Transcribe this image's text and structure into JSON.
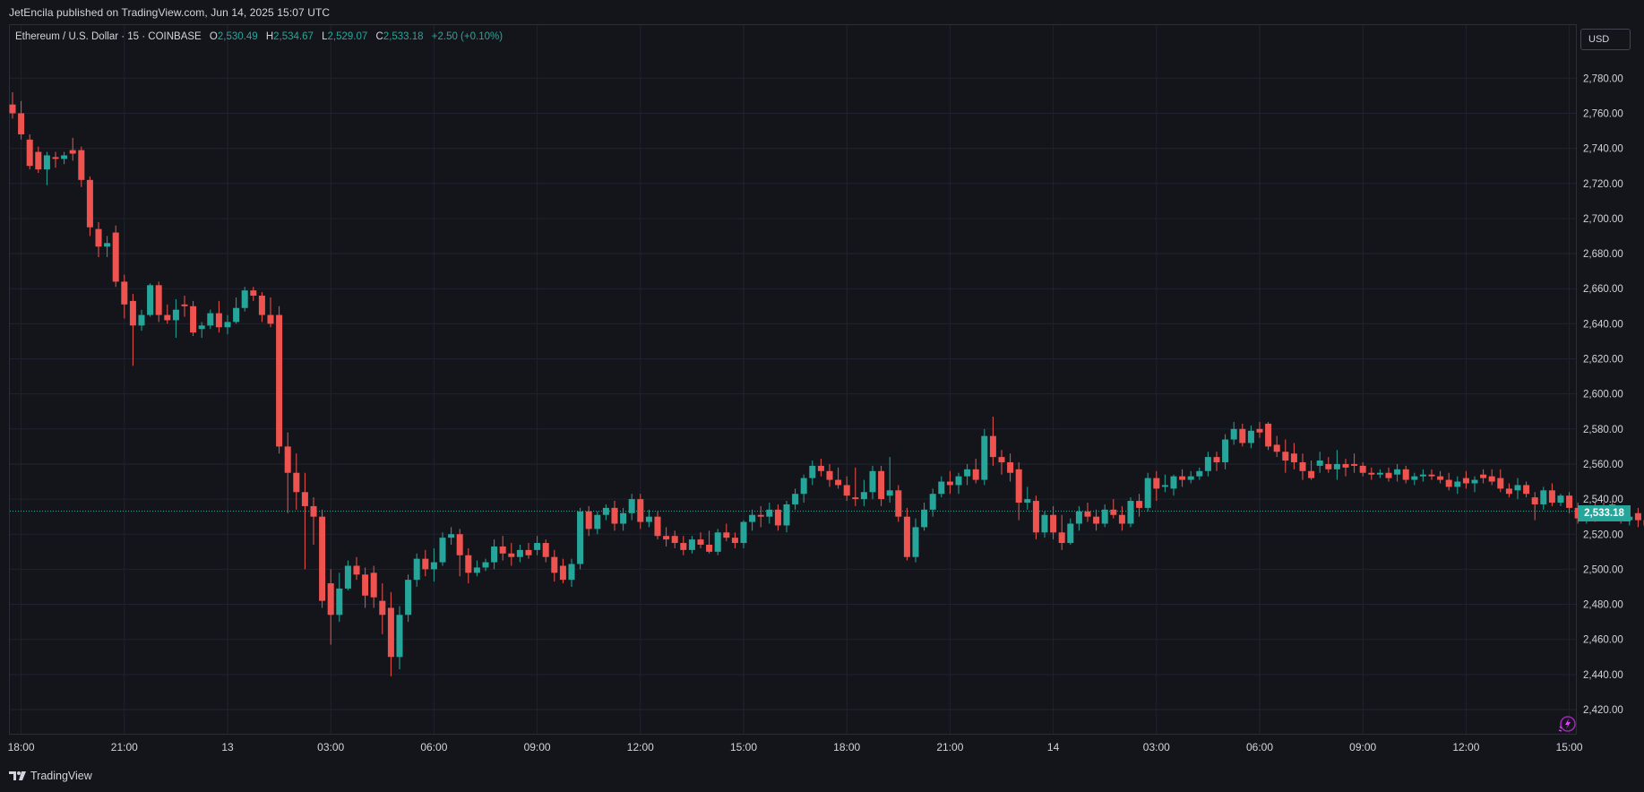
{
  "header": {
    "published": "JetEncila published on TradingView.com, Jun 14, 2025 15:07 UTC"
  },
  "legend": {
    "symbol": "Ethereum / U.S. Dollar · 15 · COINBASE",
    "o_label": "O",
    "o_value": "2,530.49",
    "h_label": "H",
    "h_value": "2,534.67",
    "l_label": "L",
    "l_value": "2,529.07",
    "c_label": "C",
    "c_value": "2,533.18",
    "change": "+2.50 (+0.10%)"
  },
  "currency_button": "USD",
  "current_price_label": "2,533.18",
  "footer": {
    "brand": "TradingView"
  },
  "colors": {
    "background": "#14151b",
    "up": "#26a69a",
    "down": "#ef5350",
    "grid": "#1f2230",
    "text": "#d1d4dc"
  },
  "chart_data": {
    "type": "candlestick",
    "symbol": "ETH/USD",
    "interval": "15",
    "exchange": "COINBASE",
    "ylim": [
      2405,
      2795
    ],
    "yticks": [
      2420,
      2440,
      2460,
      2480,
      2500,
      2520,
      2540,
      2560,
      2580,
      2600,
      2620,
      2640,
      2660,
      2680,
      2700,
      2720,
      2740,
      2760,
      2780
    ],
    "ytick_labels": [
      "2,420.00",
      "2,440.00",
      "2,460.00",
      "2,480.00",
      "2,500.00",
      "2,520.00",
      "2,540.00",
      "2,560.00",
      "2,580.00",
      "2,600.00",
      "2,620.00",
      "2,640.00",
      "2,660.00",
      "2,680.00",
      "2,700.00",
      "2,720.00",
      "2,740.00",
      "2,760.00",
      "2,780.00"
    ],
    "xtick_labels": [
      "18:00",
      "21:00",
      "13",
      "03:00",
      "06:00",
      "09:00",
      "12:00",
      "15:00",
      "18:00",
      "21:00",
      "14",
      "03:00",
      "06:00",
      "09:00",
      "12:00",
      "15:00"
    ],
    "last_price": 2533.18,
    "grid": true,
    "candles": [
      [
        2765,
        2772,
        2757,
        2760
      ],
      [
        2760,
        2767,
        2745,
        2748
      ],
      [
        2745,
        2748,
        2728,
        2730
      ],
      [
        2738,
        2741,
        2726,
        2728
      ],
      [
        2728,
        2738,
        2719,
        2736
      ],
      [
        2735,
        2738,
        2729,
        2734
      ],
      [
        2734,
        2738,
        2731,
        2736
      ],
      [
        2739,
        2746,
        2733,
        2737
      ],
      [
        2739,
        2741,
        2718,
        2722
      ],
      [
        2722,
        2724,
        2690,
        2695
      ],
      [
        2694,
        2698,
        2678,
        2684
      ],
      [
        2684,
        2690,
        2678,
        2686
      ],
      [
        2692,
        2696,
        2661,
        2664
      ],
      [
        2664,
        2668,
        2643,
        2651
      ],
      [
        2653,
        2657,
        2616,
        2639
      ],
      [
        2639,
        2648,
        2636,
        2645
      ],
      [
        2645,
        2663,
        2644,
        2662
      ],
      [
        2662,
        2664,
        2641,
        2645
      ],
      [
        2645,
        2651,
        2640,
        2642
      ],
      [
        2642,
        2654,
        2632,
        2648
      ],
      [
        2651,
        2656,
        2644,
        2650
      ],
      [
        2650,
        2653,
        2633,
        2635
      ],
      [
        2637,
        2641,
        2632,
        2639
      ],
      [
        2639,
        2648,
        2637,
        2646
      ],
      [
        2646,
        2653,
        2635,
        2638
      ],
      [
        2638,
        2645,
        2634,
        2641
      ],
      [
        2641,
        2655,
        2640,
        2649
      ],
      [
        2649,
        2661,
        2647,
        2659
      ],
      [
        2659,
        2661,
        2653,
        2656
      ],
      [
        2656,
        2658,
        2641,
        2645
      ],
      [
        2645,
        2655,
        2638,
        2640
      ],
      [
        2645,
        2650,
        2566,
        2570
      ],
      [
        2570,
        2578,
        2532,
        2555
      ],
      [
        2555,
        2566,
        2534,
        2544
      ],
      [
        2544,
        2555,
        2500,
        2536
      ],
      [
        2536,
        2541,
        2514,
        2530
      ],
      [
        2530,
        2534,
        2478,
        2482
      ],
      [
        2492,
        2500,
        2457,
        2474
      ],
      [
        2474,
        2498,
        2470,
        2489
      ],
      [
        2489,
        2505,
        2488,
        2502
      ],
      [
        2502,
        2507,
        2494,
        2497
      ],
      [
        2497,
        2501,
        2478,
        2485
      ],
      [
        2498,
        2502,
        2478,
        2484
      ],
      [
        2482,
        2492,
        2463,
        2474
      ],
      [
        2478,
        2487,
        2439,
        2450
      ],
      [
        2450,
        2479,
        2443,
        2474
      ],
      [
        2474,
        2497,
        2470,
        2494
      ],
      [
        2494,
        2509,
        2490,
        2506
      ],
      [
        2506,
        2511,
        2496,
        2500
      ],
      [
        2500,
        2512,
        2493,
        2504
      ],
      [
        2504,
        2521,
        2502,
        2518
      ],
      [
        2518,
        2524,
        2514,
        2520
      ],
      [
        2520,
        2523,
        2496,
        2508
      ],
      [
        2508,
        2512,
        2492,
        2498
      ],
      [
        2498,
        2505,
        2496,
        2501
      ],
      [
        2501,
        2506,
        2499,
        2504
      ],
      [
        2504,
        2517,
        2500,
        2513
      ],
      [
        2513,
        2519,
        2505,
        2509
      ],
      [
        2509,
        2515,
        2502,
        2507
      ],
      [
        2507,
        2514,
        2504,
        2511
      ],
      [
        2511,
        2515,
        2506,
        2508
      ],
      [
        2511,
        2519,
        2508,
        2515
      ],
      [
        2515,
        2517,
        2504,
        2507
      ],
      [
        2507,
        2511,
        2493,
        2498
      ],
      [
        2502,
        2506,
        2492,
        2494
      ],
      [
        2494,
        2506,
        2490,
        2503
      ],
      [
        2503,
        2535,
        2500,
        2533
      ],
      [
        2533,
        2536,
        2519,
        2523
      ],
      [
        2523,
        2533,
        2520,
        2531
      ],
      [
        2531,
        2537,
        2528,
        2535
      ],
      [
        2535,
        2539,
        2522,
        2526
      ],
      [
        2526,
        2535,
        2522,
        2532
      ],
      [
        2532,
        2543,
        2528,
        2540
      ],
      [
        2540,
        2543,
        2523,
        2527
      ],
      [
        2527,
        2534,
        2524,
        2530
      ],
      [
        2530,
        2533,
        2517,
        2519
      ],
      [
        2519,
        2524,
        2513,
        2517
      ],
      [
        2519,
        2522,
        2512,
        2515
      ],
      [
        2515,
        2519,
        2508,
        2511
      ],
      [
        2511,
        2519,
        2509,
        2517
      ],
      [
        2517,
        2521,
        2512,
        2514
      ],
      [
        2514,
        2522,
        2509,
        2510
      ],
      [
        2510,
        2523,
        2508,
        2521
      ],
      [
        2521,
        2526,
        2516,
        2518
      ],
      [
        2518,
        2521,
        2512,
        2515
      ],
      [
        2515,
        2528,
        2512,
        2527
      ],
      [
        2527,
        2534,
        2522,
        2531
      ],
      [
        2531,
        2536,
        2524,
        2530
      ],
      [
        2530,
        2538,
        2526,
        2534
      ],
      [
        2534,
        2537,
        2522,
        2525
      ],
      [
        2525,
        2539,
        2521,
        2537
      ],
      [
        2537,
        2546,
        2534,
        2543
      ],
      [
        2543,
        2554,
        2538,
        2552
      ],
      [
        2552,
        2562,
        2548,
        2559
      ],
      [
        2559,
        2563,
        2553,
        2556
      ],
      [
        2556,
        2560,
        2547,
        2551
      ],
      [
        2551,
        2558,
        2546,
        2548
      ],
      [
        2548,
        2553,
        2539,
        2542
      ],
      [
        2541,
        2558,
        2536,
        2540
      ],
      [
        2540,
        2551,
        2536,
        2544
      ],
      [
        2544,
        2559,
        2540,
        2556
      ],
      [
        2556,
        2559,
        2536,
        2540
      ],
      [
        2542,
        2564,
        2538,
        2545
      ],
      [
        2545,
        2548,
        2527,
        2530
      ],
      [
        2530,
        2535,
        2505,
        2507
      ],
      [
        2507,
        2529,
        2504,
        2524
      ],
      [
        2524,
        2538,
        2522,
        2534
      ],
      [
        2534,
        2546,
        2530,
        2543
      ],
      [
        2543,
        2553,
        2541,
        2550
      ],
      [
        2550,
        2556,
        2543,
        2548
      ],
      [
        2548,
        2555,
        2543,
        2553
      ],
      [
        2553,
        2560,
        2548,
        2557
      ],
      [
        2557,
        2563,
        2549,
        2551
      ],
      [
        2551,
        2580,
        2548,
        2576
      ],
      [
        2576,
        2587,
        2559,
        2564
      ],
      [
        2564,
        2568,
        2554,
        2561
      ],
      [
        2561,
        2566,
        2550,
        2555
      ],
      [
        2557,
        2561,
        2528,
        2538
      ],
      [
        2538,
        2547,
        2534,
        2540
      ],
      [
        2539,
        2542,
        2517,
        2521
      ],
      [
        2521,
        2533,
        2518,
        2531
      ],
      [
        2531,
        2536,
        2517,
        2521
      ],
      [
        2521,
        2531,
        2511,
        2515
      ],
      [
        2515,
        2529,
        2514,
        2526
      ],
      [
        2526,
        2536,
        2522,
        2533
      ],
      [
        2533,
        2538,
        2527,
        2530
      ],
      [
        2530,
        2534,
        2522,
        2526
      ],
      [
        2526,
        2537,
        2524,
        2534
      ],
      [
        2534,
        2540,
        2529,
        2531
      ],
      [
        2531,
        2536,
        2522,
        2526
      ],
      [
        2526,
        2541,
        2524,
        2539
      ],
      [
        2539,
        2543,
        2530,
        2535
      ],
      [
        2535,
        2555,
        2533,
        2552
      ],
      [
        2552,
        2556,
        2539,
        2546
      ],
      [
        2547,
        2554,
        2544,
        2548
      ],
      [
        2546,
        2554,
        2542,
        2553
      ],
      [
        2553,
        2557,
        2547,
        2551
      ],
      [
        2551,
        2556,
        2549,
        2553
      ],
      [
        2553,
        2558,
        2551,
        2556
      ],
      [
        2556,
        2567,
        2553,
        2564
      ],
      [
        2564,
        2567,
        2556,
        2561
      ],
      [
        2561,
        2577,
        2557,
        2574
      ],
      [
        2574,
        2584,
        2571,
        2580
      ],
      [
        2580,
        2583,
        2570,
        2572
      ],
      [
        2572,
        2582,
        2569,
        2579
      ],
      [
        2580,
        2584,
        2575,
        2578
      ],
      [
        2583,
        2584,
        2568,
        2570
      ],
      [
        2571,
        2576,
        2564,
        2567
      ],
      [
        2567,
        2574,
        2555,
        2562
      ],
      [
        2566,
        2572,
        2557,
        2561
      ],
      [
        2561,
        2566,
        2551,
        2556
      ],
      [
        2556,
        2562,
        2551,
        2552
      ],
      [
        2559,
        2567,
        2555,
        2562
      ],
      [
        2560,
        2564,
        2555,
        2557
      ],
      [
        2557,
        2568,
        2551,
        2560
      ],
      [
        2560,
        2563,
        2553,
        2558
      ],
      [
        2560,
        2566,
        2555,
        2559
      ],
      [
        2559,
        2561,
        2553,
        2555
      ],
      [
        2555,
        2558,
        2551,
        2554
      ],
      [
        2554,
        2557,
        2552,
        2555
      ],
      [
        2555,
        2558,
        2550,
        2552
      ],
      [
        2554,
        2560,
        2550,
        2557
      ],
      [
        2557,
        2559,
        2549,
        2551
      ],
      [
        2551,
        2555,
        2548,
        2553
      ],
      [
        2553,
        2557,
        2550,
        2554
      ],
      [
        2554,
        2557,
        2551,
        2553
      ],
      [
        2553,
        2556,
        2549,
        2551
      ],
      [
        2551,
        2555,
        2545,
        2547
      ],
      [
        2547,
        2553,
        2543,
        2550
      ],
      [
        2552,
        2556,
        2546,
        2549
      ],
      [
        2549,
        2553,
        2544,
        2551
      ],
      [
        2554,
        2557,
        2549,
        2552
      ],
      [
        2553,
        2557,
        2548,
        2550
      ],
      [
        2552,
        2557,
        2544,
        2546
      ],
      [
        2546,
        2549,
        2541,
        2543
      ],
      [
        2545,
        2552,
        2540,
        2548
      ],
      [
        2548,
        2550,
        2541,
        2543
      ],
      [
        2541,
        2544,
        2528,
        2537
      ],
      [
        2537,
        2547,
        2534,
        2545
      ],
      [
        2545,
        2549,
        2536,
        2538
      ],
      [
        2538,
        2543,
        2536,
        2542
      ],
      [
        2542,
        2544,
        2532,
        2535
      ],
      [
        2535,
        2538,
        2526,
        2529
      ],
      [
        2529,
        2536,
        2526,
        2533
      ],
      [
        2533,
        2538,
        2527,
        2530
      ],
      [
        2535,
        2538,
        2528,
        2532
      ],
      [
        2537,
        2539,
        2529,
        2531
      ],
      [
        2531,
        2536,
        2526,
        2528
      ],
      [
        2528,
        2532,
        2525,
        2530
      ],
      [
        2532,
        2535,
        2524,
        2528
      ],
      [
        2528,
        2530,
        2522,
        2525
      ],
      [
        2524,
        2527,
        2518,
        2526
      ],
      [
        2526,
        2534,
        2524,
        2532
      ],
      [
        2532,
        2535,
        2526,
        2529
      ],
      [
        2529,
        2533,
        2526,
        2530
      ],
      [
        2530,
        2536,
        2528,
        2534
      ],
      [
        2534,
        2537,
        2527,
        2531
      ],
      [
        2531,
        2537,
        2528,
        2536
      ],
      [
        2536,
        2539,
        2530,
        2533
      ],
      [
        2533,
        2539,
        2529,
        2537
      ],
      [
        2539,
        2540,
        2530,
        2532
      ],
      [
        2533,
        2539,
        2530,
        2536
      ],
      [
        2535,
        2537,
        2528,
        2530
      ],
      [
        2530,
        2537,
        2528,
        2535
      ],
      [
        2535,
        2539,
        2529,
        2533
      ],
      [
        2533,
        2542,
        2530,
        2539
      ],
      [
        2538,
        2547,
        2533,
        2537
      ],
      [
        2537,
        2541,
        2534,
        2540
      ],
      [
        2540,
        2542,
        2528,
        2532
      ],
      [
        2532,
        2537,
        2529,
        2535
      ],
      [
        2535,
        2537,
        2529,
        2531
      ],
      [
        2531,
        2536,
        2529,
        2534
      ],
      [
        2534,
        2536,
        2530,
        2533
      ],
      [
        2533,
        2538,
        2530,
        2535
      ],
      [
        2532,
        2536,
        2527,
        2530
      ],
      [
        2530,
        2532,
        2524,
        2532
      ],
      [
        2531,
        2534,
        2528,
        2533
      ]
    ]
  }
}
